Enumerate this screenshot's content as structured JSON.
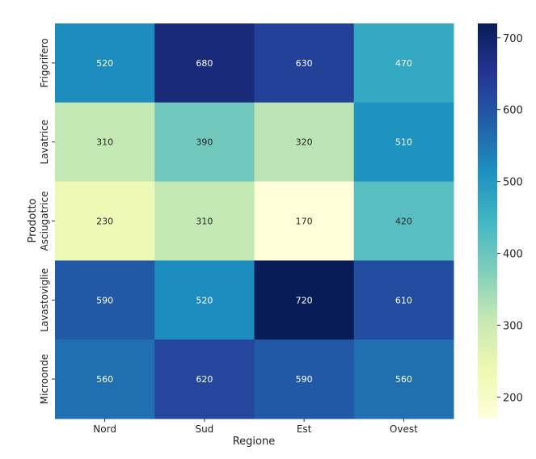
{
  "chart_data": {
    "type": "heatmap",
    "title": "",
    "xlabel": "Regione",
    "ylabel": "Prodotto",
    "x_categories": [
      "Nord",
      "Sud",
      "Est",
      "Ovest"
    ],
    "y_categories": [
      "Frigorifero",
      "Lavatrice",
      "Asciugatrice",
      "Lavastoviglie",
      "Microonde"
    ],
    "values": [
      [
        520,
        680,
        630,
        470
      ],
      [
        310,
        390,
        320,
        510
      ],
      [
        230,
        310,
        170,
        420
      ],
      [
        590,
        520,
        720,
        610
      ],
      [
        560,
        620,
        590,
        560
      ]
    ],
    "colormap": "YlGnBu",
    "color_range": [
      170,
      720
    ],
    "colorbar_ticks": [
      200,
      300,
      400,
      500,
      600,
      700
    ],
    "annotations": true,
    "colorbar_position": "right"
  }
}
